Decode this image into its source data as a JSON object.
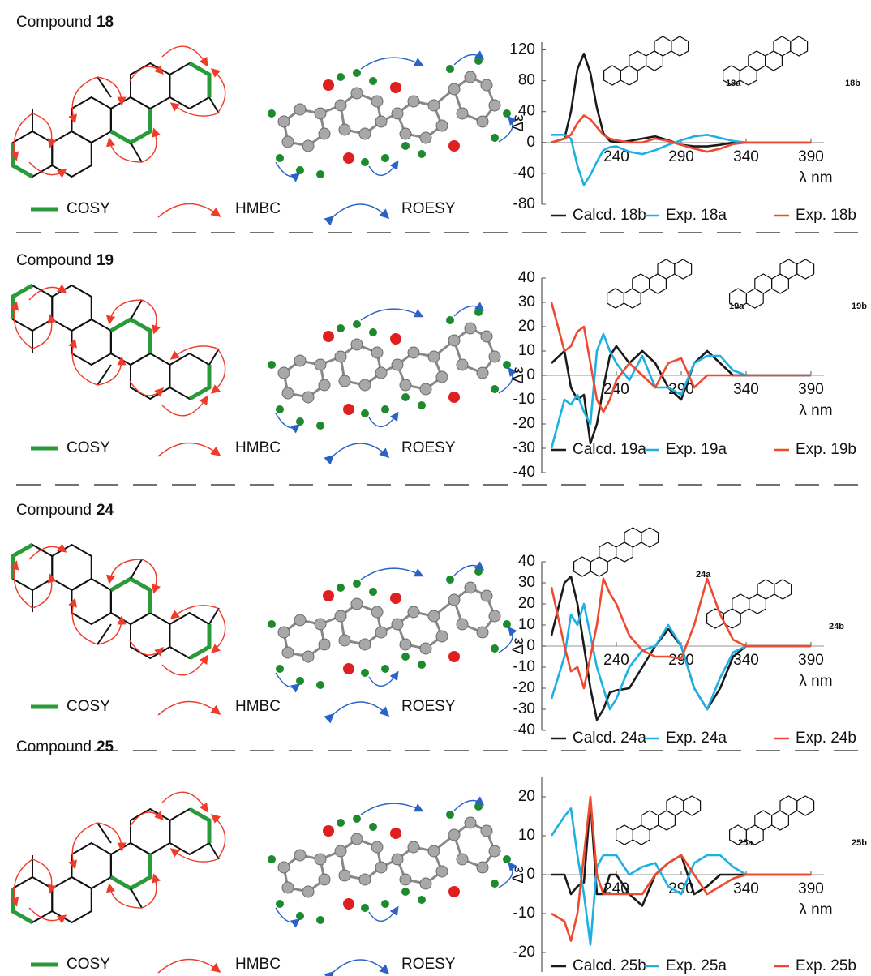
{
  "panels": [
    {
      "title": "Compound",
      "number": "18",
      "legend": [
        "COSY",
        "HMBC",
        "ROESY"
      ]
    },
    {
      "title": "Compound",
      "number": "19",
      "legend": [
        "COSY",
        "HMBC",
        "ROESY"
      ]
    },
    {
      "title": "Compound",
      "number": "24",
      "legend": [
        "COSY",
        "HMBC",
        "ROESY"
      ]
    },
    {
      "title": "Compound",
      "number": "25",
      "legend": [
        "COSY",
        "HMBC",
        "ROESY"
      ]
    }
  ],
  "chart_data": [
    {
      "type": "line",
      "x_label": "λ nm",
      "y_label": "Δε",
      "structure_labels": [
        "18a",
        "18b"
      ],
      "x": [
        190,
        200,
        205,
        210,
        215,
        220,
        225,
        230,
        235,
        240,
        250,
        260,
        270,
        280,
        290,
        300,
        310,
        320,
        330,
        340,
        360,
        390
      ],
      "xlim": [
        185,
        400
      ],
      "xticks": [
        240,
        290,
        340,
        390
      ],
      "ylim": [
        -80,
        130
      ],
      "yticks": [
        -80,
        -40,
        0,
        40,
        80,
        120
      ],
      "series": [
        {
          "name": "Calcd. 18b",
          "color": "#1a1a1a",
          "values": [
            0,
            5,
            40,
            95,
            115,
            90,
            45,
            12,
            2,
            0,
            2,
            5,
            8,
            3,
            -3,
            -5,
            -5,
            -3,
            0,
            0,
            0,
            0
          ]
        },
        {
          "name": "Exp. 18a",
          "color": "#1cb0e3",
          "values": [
            10,
            10,
            5,
            -30,
            -55,
            -42,
            -25,
            -10,
            -6,
            -5,
            -12,
            -15,
            -10,
            -3,
            3,
            8,
            10,
            6,
            2,
            0,
            0,
            0
          ]
        },
        {
          "name": "Exp. 18b",
          "color": "#ee4a2f",
          "values": [
            0,
            5,
            10,
            25,
            35,
            30,
            20,
            10,
            5,
            3,
            0,
            0,
            5,
            2,
            -3,
            -8,
            -12,
            -8,
            -2,
            0,
            0,
            0
          ]
        }
      ]
    },
    {
      "type": "line",
      "x_label": "λ nm",
      "y_label": "Δε",
      "structure_labels": [
        "19a",
        "19b"
      ],
      "x": [
        190,
        200,
        205,
        210,
        215,
        220,
        225,
        230,
        235,
        240,
        250,
        260,
        270,
        280,
        290,
        300,
        310,
        320,
        330,
        340,
        360,
        390
      ],
      "xlim": [
        185,
        400
      ],
      "xticks": [
        240,
        290,
        340,
        390
      ],
      "ylim": [
        -40,
        40
      ],
      "yticks": [
        -40,
        -30,
        -20,
        -10,
        0,
        10,
        20,
        30,
        40
      ],
      "series": [
        {
          "name": "Calcd. 19a",
          "color": "#1a1a1a",
          "values": [
            5,
            10,
            -5,
            -10,
            -8,
            -28,
            -20,
            -5,
            8,
            12,
            5,
            10,
            5,
            -5,
            -10,
            5,
            10,
            5,
            0,
            0,
            0,
            0
          ]
        },
        {
          "name": "Exp. 19a",
          "color": "#1cb0e3",
          "values": [
            -30,
            -10,
            -12,
            -8,
            -15,
            -20,
            10,
            17,
            10,
            5,
            -2,
            8,
            -5,
            -5,
            -8,
            5,
            8,
            8,
            2,
            0,
            0,
            0
          ]
        },
        {
          "name": "Exp. 19b",
          "color": "#ee4a2f",
          "values": [
            30,
            10,
            12,
            18,
            20,
            5,
            -10,
            -15,
            -10,
            -2,
            5,
            0,
            -5,
            5,
            7,
            -5,
            0,
            0,
            0,
            0,
            0,
            0
          ]
        }
      ]
    },
    {
      "type": "line",
      "x_label": "λ nm",
      "y_label": "Δε",
      "structure_labels": [
        "24a",
        "24b"
      ],
      "x": [
        190,
        200,
        205,
        210,
        215,
        220,
        225,
        230,
        235,
        240,
        250,
        260,
        270,
        280,
        290,
        300,
        310,
        320,
        330,
        340,
        360,
        390
      ],
      "xlim": [
        185,
        400
      ],
      "xticks": [
        240,
        290,
        340,
        390
      ],
      "ylim": [
        -40,
        40
      ],
      "yticks": [
        -40,
        -30,
        -20,
        -10,
        0,
        10,
        20,
        30,
        40
      ],
      "series": [
        {
          "name": "Calcd. 24a",
          "color": "#1a1a1a",
          "values": [
            5,
            30,
            33,
            20,
            0,
            -20,
            -35,
            -30,
            -22,
            -21,
            -20,
            -10,
            0,
            8,
            0,
            -20,
            -30,
            -20,
            -5,
            0,
            0,
            0
          ]
        },
        {
          "name": "Exp. 24a",
          "color": "#1cb0e3",
          "values": [
            -25,
            -5,
            15,
            10,
            20,
            5,
            -10,
            -20,
            -30,
            -25,
            -10,
            -2,
            0,
            10,
            0,
            -20,
            -30,
            -15,
            -3,
            0,
            0,
            0
          ]
        },
        {
          "name": "Exp. 24b",
          "color": "#ee4a2f",
          "values": [
            28,
            0,
            -12,
            -10,
            -20,
            -5,
            10,
            32,
            25,
            20,
            5,
            -2,
            -5,
            -5,
            -6,
            10,
            32,
            15,
            3,
            0,
            0,
            0
          ]
        }
      ]
    },
    {
      "type": "line",
      "x_label": "λ nm",
      "y_label": "Δε",
      "structure_labels": [
        "25a",
        "25b"
      ],
      "x": [
        190,
        200,
        205,
        210,
        215,
        220,
        225,
        230,
        235,
        240,
        250,
        260,
        270,
        280,
        290,
        300,
        310,
        320,
        330,
        340,
        360,
        390
      ],
      "xlim": [
        185,
        400
      ],
      "xticks": [
        240,
        290,
        340,
        390
      ],
      "ylim": [
        -25,
        25
      ],
      "yticks": [
        -20,
        -10,
        0,
        10,
        20
      ],
      "series": [
        {
          "name": "Calcd. 25b",
          "color": "#1a1a1a",
          "values": [
            0,
            0,
            -5,
            -3,
            -2,
            19,
            -5,
            -5,
            0,
            0,
            -5,
            -8,
            0,
            3,
            5,
            -5,
            -3,
            0,
            0,
            0,
            0,
            0
          ]
        },
        {
          "name": "Exp. 25a",
          "color": "#1cb0e3",
          "values": [
            10,
            15,
            17,
            5,
            -5,
            -18,
            2,
            5,
            5,
            5,
            0,
            2,
            3,
            -3,
            -5,
            3,
            5,
            5,
            2,
            0,
            0,
            0
          ]
        },
        {
          "name": "Exp. 25b",
          "color": "#ee4a2f",
          "values": [
            -10,
            -12,
            -17,
            -10,
            5,
            20,
            0,
            -5,
            -5,
            -5,
            -5,
            -5,
            0,
            3,
            5,
            0,
            -5,
            -3,
            -1,
            0,
            0,
            0
          ]
        }
      ]
    }
  ]
}
